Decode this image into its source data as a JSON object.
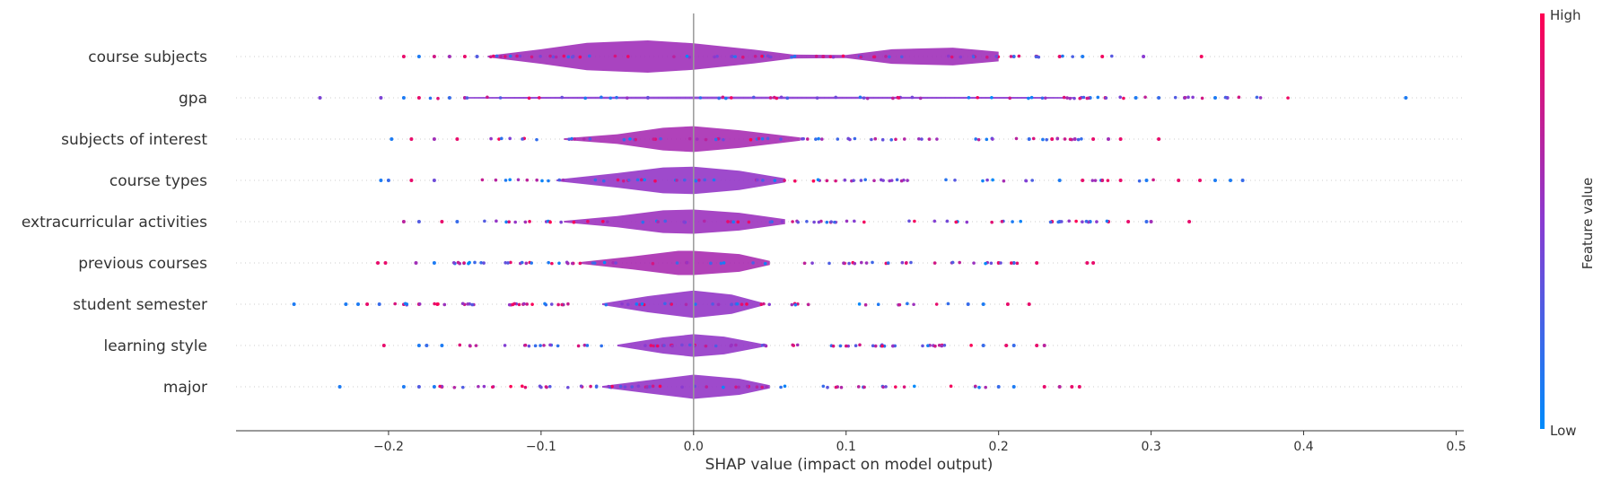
{
  "chart_data": {
    "type": "scatter",
    "subtype": "shap-summary-violin",
    "xlabel": "SHAP value (impact on model output)",
    "xlim": [
      -0.3,
      0.505
    ],
    "xticks": [
      -0.2,
      -0.1,
      0.0,
      0.1,
      0.2,
      0.3,
      0.4,
      0.5
    ],
    "xtick_labels": [
      "−0.2",
      "−0.1",
      "0.0",
      "0.1",
      "0.2",
      "0.3",
      "0.4",
      "0.5"
    ],
    "zero_line": 0.0,
    "grid": false,
    "colorbar": {
      "label": "Feature value",
      "high_label": "High",
      "low_label": "Low",
      "high_color": "#ff0052",
      "low_color": "#008bfb",
      "position": "right"
    },
    "features": [
      {
        "name": "course subjects",
        "min": -0.19,
        "max": 0.333,
        "density": [
          [
            -0.135,
            0.05
          ],
          [
            -0.1,
            0.45
          ],
          [
            -0.07,
            0.85
          ],
          [
            -0.03,
            1.0
          ],
          [
            0.0,
            0.82
          ],
          [
            0.04,
            0.42
          ],
          [
            0.065,
            0.12
          ],
          [
            0.1,
            0.1
          ],
          [
            0.13,
            0.45
          ],
          [
            0.17,
            0.55
          ],
          [
            0.2,
            0.3
          ]
        ],
        "points": [
          {
            "x": -0.19,
            "c": 0.9
          },
          {
            "x": -0.18,
            "c": 0.1
          },
          {
            "x": -0.17,
            "c": 0.8
          },
          {
            "x": -0.16,
            "c": 0.6
          },
          {
            "x": -0.15,
            "c": 0.9
          },
          {
            "x": -0.142,
            "c": 0.3
          },
          {
            "x": 0.085,
            "c": 0.8
          },
          {
            "x": 0.11,
            "c": 0.4
          },
          {
            "x": 0.21,
            "c": 0.2
          },
          {
            "x": 0.225,
            "c": 0.7
          },
          {
            "x": 0.24,
            "c": 0.9
          },
          {
            "x": 0.255,
            "c": 0.1
          },
          {
            "x": 0.268,
            "c": 0.95
          },
          {
            "x": 0.295,
            "c": 0.5
          },
          {
            "x": 0.333,
            "c": 0.95
          }
        ]
      },
      {
        "name": "gpa",
        "min": -0.245,
        "max": 0.467,
        "density": [
          [
            -0.15,
            0.05
          ],
          [
            0.0,
            0.08
          ],
          [
            0.25,
            0.05
          ]
        ],
        "points": [
          {
            "x": -0.245,
            "c": 0.45
          },
          {
            "x": -0.205,
            "c": 0.45
          },
          {
            "x": -0.19,
            "c": 0.1
          },
          {
            "x": -0.18,
            "c": 0.9
          },
          {
            "x": -0.16,
            "c": 0.2
          },
          {
            "x": -0.15,
            "c": 0.7
          },
          {
            "x": 0.26,
            "c": 0.1
          },
          {
            "x": 0.27,
            "c": 0.9
          },
          {
            "x": 0.29,
            "c": 0.1
          },
          {
            "x": 0.305,
            "c": 0.2
          },
          {
            "x": 0.322,
            "c": 0.45
          },
          {
            "x": 0.342,
            "c": 0.1
          },
          {
            "x": 0.35,
            "c": 0.45
          },
          {
            "x": 0.467,
            "c": 0.1
          }
        ]
      },
      {
        "name": "subjects of interest",
        "min": -0.198,
        "max": 0.305,
        "density": [
          [
            -0.085,
            0.05
          ],
          [
            -0.05,
            0.3
          ],
          [
            -0.02,
            0.7
          ],
          [
            0.0,
            0.8
          ],
          [
            0.03,
            0.55
          ],
          [
            0.07,
            0.1
          ]
        ],
        "points": [
          {
            "x": -0.198,
            "c": 0.1
          },
          {
            "x": -0.185,
            "c": 0.9
          },
          {
            "x": -0.17,
            "c": 0.6
          },
          {
            "x": -0.155,
            "c": 0.9
          },
          {
            "x": 0.22,
            "c": 0.2
          },
          {
            "x": 0.235,
            "c": 0.9
          },
          {
            "x": 0.25,
            "c": 0.6
          },
          {
            "x": 0.262,
            "c": 0.9
          },
          {
            "x": 0.272,
            "c": 0.6
          },
          {
            "x": 0.28,
            "c": 0.9
          },
          {
            "x": 0.305,
            "c": 0.9
          }
        ]
      },
      {
        "name": "course types",
        "min": -0.205,
        "max": 0.36,
        "density": [
          [
            -0.09,
            0.05
          ],
          [
            -0.05,
            0.45
          ],
          [
            -0.02,
            0.8
          ],
          [
            0.0,
            0.85
          ],
          [
            0.03,
            0.6
          ],
          [
            0.06,
            0.12
          ]
        ],
        "points": [
          {
            "x": -0.205,
            "c": 0.1
          },
          {
            "x": -0.2,
            "c": 0.2
          },
          {
            "x": -0.185,
            "c": 0.9
          },
          {
            "x": -0.17,
            "c": 0.4
          },
          {
            "x": 0.24,
            "c": 0.1
          },
          {
            "x": 0.255,
            "c": 0.9
          },
          {
            "x": 0.268,
            "c": 0.9
          },
          {
            "x": 0.28,
            "c": 0.9
          },
          {
            "x": 0.297,
            "c": 0.1
          },
          {
            "x": 0.318,
            "c": 0.9
          },
          {
            "x": 0.332,
            "c": 0.9
          },
          {
            "x": 0.342,
            "c": 0.1
          },
          {
            "x": 0.352,
            "c": 0.1
          },
          {
            "x": 0.36,
            "c": 0.2
          }
        ]
      },
      {
        "name": "extracurricular activities",
        "min": -0.19,
        "max": 0.325,
        "density": [
          [
            -0.085,
            0.05
          ],
          [
            -0.05,
            0.35
          ],
          [
            -0.02,
            0.7
          ],
          [
            0.0,
            0.75
          ],
          [
            0.03,
            0.55
          ],
          [
            0.06,
            0.15
          ]
        ],
        "points": [
          {
            "x": -0.19,
            "c": 0.7
          },
          {
            "x": -0.18,
            "c": 0.3
          },
          {
            "x": -0.165,
            "c": 0.9
          },
          {
            "x": -0.155,
            "c": 0.2
          },
          {
            "x": 0.235,
            "c": 0.9
          },
          {
            "x": 0.24,
            "c": 0.2
          },
          {
            "x": 0.26,
            "c": 0.1
          },
          {
            "x": 0.272,
            "c": 0.9
          },
          {
            "x": 0.285,
            "c": 0.9
          },
          {
            "x": 0.297,
            "c": 0.2
          },
          {
            "x": 0.3,
            "c": 0.6
          },
          {
            "x": 0.325,
            "c": 0.9
          }
        ]
      },
      {
        "name": "previous courses",
        "min": -0.207,
        "max": 0.262,
        "density": [
          [
            -0.075,
            0.05
          ],
          [
            -0.04,
            0.4
          ],
          [
            -0.01,
            0.75
          ],
          [
            0.0,
            0.75
          ],
          [
            0.03,
            0.55
          ],
          [
            0.05,
            0.12
          ]
        ],
        "points": [
          {
            "x": -0.207,
            "c": 0.9
          },
          {
            "x": -0.202,
            "c": 0.9
          },
          {
            "x": -0.182,
            "c": 0.6
          },
          {
            "x": -0.17,
            "c": 0.1
          },
          {
            "x": 0.2,
            "c": 0.9
          },
          {
            "x": 0.21,
            "c": 0.2
          },
          {
            "x": 0.225,
            "c": 0.9
          },
          {
            "x": 0.258,
            "c": 0.9
          },
          {
            "x": 0.262,
            "c": 0.9
          }
        ]
      },
      {
        "name": "student semester",
        "min": -0.262,
        "max": 0.22,
        "density": [
          [
            -0.06,
            0.05
          ],
          [
            -0.03,
            0.5
          ],
          [
            0.0,
            0.85
          ],
          [
            0.025,
            0.6
          ],
          [
            0.045,
            0.1
          ]
        ],
        "points": [
          {
            "x": -0.262,
            "c": 0.1
          },
          {
            "x": -0.228,
            "c": 0.1
          },
          {
            "x": -0.22,
            "c": 0.1
          },
          {
            "x": -0.214,
            "c": 0.9
          },
          {
            "x": -0.206,
            "c": 0.2
          },
          {
            "x": -0.18,
            "c": 0.9
          },
          {
            "x": -0.168,
            "c": 0.9
          },
          {
            "x": 0.18,
            "c": 0.2
          },
          {
            "x": 0.19,
            "c": 0.1
          },
          {
            "x": 0.206,
            "c": 0.9
          },
          {
            "x": 0.22,
            "c": 0.9
          }
        ]
      },
      {
        "name": "learning style",
        "min": -0.203,
        "max": 0.23,
        "density": [
          [
            -0.05,
            0.05
          ],
          [
            -0.02,
            0.5
          ],
          [
            0.0,
            0.7
          ],
          [
            0.02,
            0.55
          ],
          [
            0.045,
            0.1
          ]
        ],
        "points": [
          {
            "x": -0.203,
            "c": 0.9
          },
          {
            "x": -0.18,
            "c": 0.1
          },
          {
            "x": -0.175,
            "c": 0.2
          },
          {
            "x": -0.165,
            "c": 0.1
          },
          {
            "x": 0.19,
            "c": 0.2
          },
          {
            "x": 0.205,
            "c": 0.9
          },
          {
            "x": 0.21,
            "c": 0.2
          },
          {
            "x": 0.225,
            "c": 0.9
          },
          {
            "x": 0.23,
            "c": 0.7
          }
        ]
      },
      {
        "name": "major",
        "min": -0.232,
        "max": 0.253,
        "density": [
          [
            -0.06,
            0.05
          ],
          [
            -0.03,
            0.4
          ],
          [
            0.0,
            0.75
          ],
          [
            0.03,
            0.5
          ],
          [
            0.05,
            0.1
          ]
        ],
        "points": [
          {
            "x": -0.232,
            "c": 0.1
          },
          {
            "x": -0.19,
            "c": 0.1
          },
          {
            "x": -0.18,
            "c": 0.3
          },
          {
            "x": -0.17,
            "c": 0.1
          },
          {
            "x": -0.165,
            "c": 0.9
          },
          {
            "x": 0.2,
            "c": 0.2
          },
          {
            "x": 0.21,
            "c": 0.1
          },
          {
            "x": 0.23,
            "c": 0.9
          },
          {
            "x": 0.24,
            "c": 0.7
          },
          {
            "x": 0.248,
            "c": 0.9
          },
          {
            "x": 0.253,
            "c": 0.9
          }
        ]
      }
    ]
  }
}
